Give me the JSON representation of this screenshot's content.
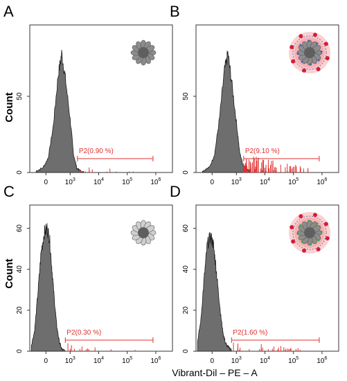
{
  "figure": {
    "ylabel": "Count",
    "xlabel": "Vibrant-Dil – PE – A"
  },
  "chart_data": [
    {
      "type": "area",
      "panel_label": "A",
      "xscale": "biexponential",
      "xlim": [
        -500,
        1000000
      ],
      "ylim": [
        0,
        95
      ],
      "yticks": [
        0,
        50
      ],
      "xticks": [
        "0",
        "10^3",
        "10^4",
        "10^5",
        "10^6"
      ],
      "gate": {
        "name": "P2",
        "percent_label": "P2(0.90 %)",
        "range": [
          1800,
          800000
        ]
      },
      "peak": {
        "x": 600,
        "y": 78
      },
      "series": [
        {
          "values_x": [
            -300,
            -100,
            100,
            300,
            500,
            650,
            800,
            1000,
            1300,
            1700,
            2200,
            3000
          ],
          "values_y": [
            1,
            3,
            10,
            30,
            63,
            78,
            62,
            35,
            12,
            3,
            1,
            0
          ]
        }
      ],
      "gated_events": "sparse",
      "icon": "bare-nanoparticle"
    },
    {
      "type": "area",
      "panel_label": "B",
      "xscale": "biexponential",
      "xlim": [
        -500,
        1000000
      ],
      "ylim": [
        0,
        95
      ],
      "yticks": [
        0,
        50
      ],
      "xticks": [
        "0",
        "10^3",
        "10^4",
        "10^5",
        "10^6"
      ],
      "gate": {
        "name": "P2",
        "percent_label": "P2(9.10 %)",
        "range": [
          1800,
          800000
        ]
      },
      "peak": {
        "x": 600,
        "y": 78
      },
      "series": [
        {
          "values_x": [
            -300,
            -100,
            100,
            300,
            500,
            650,
            800,
            1000,
            1300,
            1700,
            2200,
            3000
          ],
          "values_y": [
            1,
            3,
            12,
            35,
            66,
            78,
            60,
            33,
            13,
            5,
            3,
            1
          ]
        }
      ],
      "gated_events": "dense",
      "icon": "coated-nanoparticle-pink"
    },
    {
      "type": "area",
      "panel_label": "C",
      "xscale": "biexponential",
      "xlim": [
        -500,
        1000000
      ],
      "ylim": [
        0,
        70
      ],
      "yticks": [
        0,
        20,
        40,
        60
      ],
      "xticks": [
        "0",
        "10^3",
        "10^4",
        "10^5",
        "10^6"
      ],
      "gate": {
        "name": "P2",
        "percent_label": "P2(0.30 %)",
        "range": [
          800,
          800000
        ]
      },
      "peak": {
        "x": 100,
        "y": 60
      },
      "series": [
        {
          "values_x": [
            -450,
            -350,
            -250,
            -150,
            -50,
            50,
            150,
            250,
            350,
            450,
            550,
            650,
            800
          ],
          "values_y": [
            3,
            10,
            28,
            48,
            58,
            60,
            55,
            40,
            25,
            12,
            5,
            1,
            0
          ]
        }
      ],
      "gated_events": "sparse",
      "icon": "bare-nanoparticle-light"
    },
    {
      "type": "area",
      "panel_label": "D",
      "xscale": "biexponential",
      "xlim": [
        -500,
        1000000
      ],
      "ylim": [
        0,
        70
      ],
      "yticks": [
        0,
        20,
        40,
        60
      ],
      "xticks": [
        "0",
        "10^3",
        "10^4",
        "10^5",
        "10^6"
      ],
      "gate": {
        "name": "P2",
        "percent_label": "P2(1.60 %)",
        "range": [
          800,
          800000
        ]
      },
      "peak": {
        "x": 0,
        "y": 56
      },
      "series": [
        {
          "values_x": [
            -450,
            -350,
            -250,
            -150,
            -50,
            50,
            150,
            250,
            350,
            450,
            550,
            650,
            800
          ],
          "values_y": [
            5,
            15,
            35,
            52,
            56,
            52,
            42,
            30,
            18,
            9,
            4,
            2,
            1
          ]
        }
      ],
      "gated_events": "moderate",
      "icon": "coated-nanoparticle-green"
    }
  ],
  "colors": {
    "histogram_fill": "#6e6e6e",
    "gate": "#e0302e",
    "axis": "#333333"
  }
}
